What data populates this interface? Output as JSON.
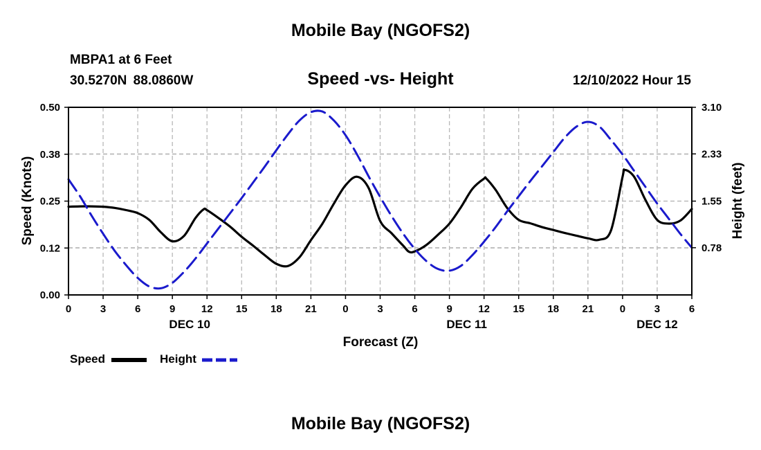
{
  "header": {
    "title": "Mobile Bay (NGOFS2)",
    "station": "MBPA1 at 6 Feet",
    "coords": "30.5270N  88.0860W",
    "subtitle": "Speed -vs- Height",
    "timestamp": "12/10/2022 Hour 15"
  },
  "footer": {
    "title": "Mobile Bay (NGOFS2)"
  },
  "legend": {
    "speed_label": "Speed",
    "height_label": "Height"
  },
  "colors": {
    "speed": "#000000",
    "height": "#1a1acc",
    "grid": "#b8b8b8"
  },
  "chart_data": {
    "type": "line",
    "title": "Speed -vs- Height",
    "xlabel": "Forecast (Z)",
    "ylabel": "Speed (Knots)",
    "y2label": "Height (feet)",
    "xlim": [
      0,
      54
    ],
    "ylim": [
      0,
      0.5
    ],
    "y2lim": [
      0,
      3.1
    ],
    "x_ticks": [
      0,
      3,
      6,
      9,
      12,
      15,
      18,
      21,
      24,
      27,
      30,
      33,
      36,
      39,
      42,
      45,
      48,
      51,
      54
    ],
    "x_tick_labels": [
      "0",
      "3",
      "6",
      "9",
      "12",
      "15",
      "18",
      "21",
      "0",
      "3",
      "6",
      "9",
      "12",
      "15",
      "18",
      "21",
      "0",
      "3",
      "6"
    ],
    "y_ticks": [
      0,
      0.125,
      0.25,
      0.375,
      0.5
    ],
    "y_tick_labels": [
      "0.00",
      "0.12",
      "0.25",
      "0.38",
      "0.50"
    ],
    "y2_ticks": [
      0.78,
      1.55,
      2.33,
      3.1
    ],
    "y2_tick_labels": [
      "0.78",
      "1.55",
      "2.33",
      "3.10"
    ],
    "day_labels": [
      {
        "x": 10.5,
        "label": "DEC 10"
      },
      {
        "x": 34.5,
        "label": "DEC 11"
      },
      {
        "x": 51,
        "label": "DEC 12"
      }
    ],
    "grid": true,
    "series": [
      {
        "name": "Speed",
        "axis": "left",
        "style": "solid",
        "x": [
          0,
          1,
          2,
          3,
          4,
          5,
          6,
          7,
          8,
          9,
          10,
          11,
          11.7,
          12,
          13,
          14,
          15,
          16,
          17,
          18,
          19,
          20,
          21,
          22,
          23,
          24,
          25,
          26,
          27,
          28,
          29,
          29.5,
          30,
          31,
          32,
          33,
          34,
          35,
          36,
          36.2,
          37,
          38,
          39,
          40,
          41,
          42,
          43,
          44,
          45,
          46,
          47,
          48,
          48.2,
          49,
          50,
          51,
          52,
          53,
          54
        ],
        "values": [
          0.235,
          0.236,
          0.236,
          0.235,
          0.232,
          0.226,
          0.218,
          0.2,
          0.167,
          0.143,
          0.157,
          0.205,
          0.228,
          0.226,
          0.205,
          0.182,
          0.155,
          0.131,
          0.106,
          0.083,
          0.077,
          0.1,
          0.146,
          0.19,
          0.244,
          0.292,
          0.315,
          0.285,
          0.197,
          0.164,
          0.131,
          0.115,
          0.116,
          0.133,
          0.16,
          0.19,
          0.234,
          0.283,
          0.31,
          0.31,
          0.28,
          0.232,
          0.2,
          0.191,
          0.181,
          0.173,
          0.165,
          0.158,
          0.151,
          0.147,
          0.172,
          0.315,
          0.333,
          0.315,
          0.252,
          0.2,
          0.19,
          0.198,
          0.229
        ]
      },
      {
        "name": "Height",
        "axis": "right",
        "style": "dashed",
        "x": [
          0,
          1,
          2,
          3,
          4,
          5,
          6,
          7,
          8,
          9,
          10,
          11,
          12,
          13,
          14,
          15,
          16,
          17,
          18,
          19,
          20,
          21,
          22,
          23,
          24,
          25,
          26,
          27,
          28,
          29,
          30,
          31,
          32,
          33,
          34,
          35,
          36,
          37,
          38,
          39,
          40,
          41,
          42,
          43,
          44,
          45,
          46,
          47,
          48,
          49,
          50,
          51,
          52,
          53,
          54
        ],
        "values": [
          1.91,
          1.63,
          1.31,
          1.01,
          0.73,
          0.49,
          0.28,
          0.14,
          0.11,
          0.2,
          0.38,
          0.6,
          0.85,
          1.1,
          1.35,
          1.6,
          1.86,
          2.12,
          2.39,
          2.65,
          2.88,
          3.02,
          3.03,
          2.88,
          2.64,
          2.32,
          1.96,
          1.62,
          1.3,
          1.01,
          0.76,
          0.56,
          0.43,
          0.4,
          0.48,
          0.66,
          0.88,
          1.12,
          1.38,
          1.63,
          1.88,
          2.12,
          2.36,
          2.6,
          2.78,
          2.86,
          2.78,
          2.56,
          2.32,
          2.05,
          1.78,
          1.51,
          1.26,
          1.01,
          0.78
        ]
      }
    ]
  }
}
